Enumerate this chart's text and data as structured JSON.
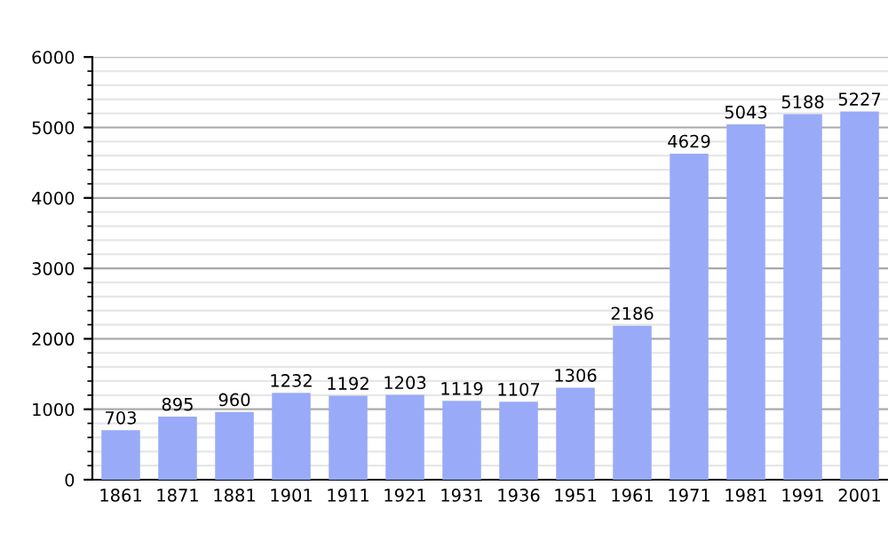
{
  "chart_data": {
    "type": "bar",
    "categories": [
      "1861",
      "1871",
      "1881",
      "1901",
      "1911",
      "1921",
      "1931",
      "1936",
      "1951",
      "1961",
      "1971",
      "1981",
      "1991",
      "2001"
    ],
    "values": [
      703,
      895,
      960,
      1232,
      1192,
      1203,
      1119,
      1107,
      1306,
      2186,
      4629,
      5043,
      5188,
      5227
    ],
    "color": "#99aaf8",
    "ylim": [
      0,
      6000
    ],
    "yticks": [
      0,
      1000,
      2000,
      3000,
      4000,
      5000,
      6000
    ],
    "grid": "y",
    "data_labels": true
  }
}
